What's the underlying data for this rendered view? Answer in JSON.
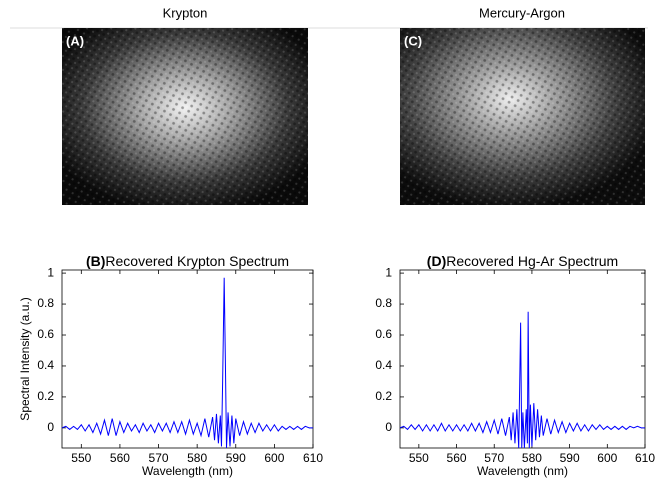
{
  "images": [
    {
      "title": "Krypton",
      "label": "(A)"
    },
    {
      "title": "Mercury-Argon",
      "label": "(C)"
    }
  ],
  "chart_data": [
    {
      "type": "line",
      "panel_label": "(B)",
      "title": "Recovered Krypton Spectrum",
      "x_label": "Wavelength (nm)",
      "y_label": "Spectral Intensity (a.u.)",
      "color": "#0000ff",
      "xlim": [
        545,
        610
      ],
      "xticks": [
        550,
        560,
        570,
        580,
        590,
        600,
        610
      ],
      "ylim": [
        -0.13,
        1.02
      ],
      "yticks": [
        0,
        0.2,
        0.4,
        0.6,
        0.8,
        1
      ],
      "x": [
        545,
        546,
        547,
        548,
        549,
        550,
        551,
        552,
        553,
        554,
        555,
        556,
        557,
        558,
        559,
        560,
        561,
        562,
        563,
        564,
        565,
        566,
        567,
        568,
        569,
        570,
        571,
        572,
        573,
        574,
        575,
        576,
        577,
        578,
        579,
        580,
        581,
        582,
        583,
        584,
        584.5,
        585,
        585.5,
        586,
        586.3,
        586.6,
        587,
        587.3,
        587.6,
        588,
        588.5,
        589,
        589.5,
        590,
        591,
        592,
        593,
        594,
        595,
        596,
        597,
        598,
        599,
        600,
        601,
        602,
        603,
        604,
        605,
        606,
        607,
        608,
        609,
        610
      ],
      "values": [
        0,
        0.01,
        -0.01,
        0.01,
        -0.01,
        0.02,
        -0.02,
        0.02,
        -0.03,
        0.03,
        -0.04,
        0.05,
        -0.05,
        0.06,
        -0.05,
        0.04,
        -0.03,
        0.03,
        -0.02,
        0.02,
        -0.03,
        0.03,
        -0.02,
        0.02,
        -0.03,
        0.03,
        -0.02,
        0.03,
        -0.03,
        0.04,
        -0.03,
        0.04,
        -0.04,
        0.05,
        -0.04,
        0.03,
        -0.05,
        0.06,
        -0.06,
        0.07,
        -0.08,
        0.09,
        -0.1,
        0.08,
        -0.12,
        0.3,
        0.97,
        0.45,
        -0.13,
        0.1,
        -0.12,
        0.08,
        -0.1,
        0.06,
        -0.05,
        0.04,
        -0.04,
        0.03,
        -0.03,
        0.03,
        -0.02,
        0.02,
        -0.02,
        0.02,
        -0.02,
        0.01,
        -0.01,
        0.01,
        -0.01,
        0.01,
        -0.01,
        0.01,
        0,
        0
      ]
    },
    {
      "type": "line",
      "panel_label": "(D)",
      "title": "Recovered Hg-Ar Spectrum",
      "x_label": "Wavelength (nm)",
      "color": "#0000ff",
      "xlim": [
        545,
        610
      ],
      "xticks": [
        550,
        560,
        570,
        580,
        590,
        600,
        610
      ],
      "ylim": [
        -0.13,
        1.02
      ],
      "yticks": [
        0,
        0.2,
        0.4,
        0.6,
        0.8,
        1
      ],
      "x": [
        545,
        546,
        547,
        548,
        549,
        550,
        551,
        552,
        553,
        554,
        555,
        556,
        557,
        558,
        559,
        560,
        561,
        562,
        563,
        564,
        565,
        566,
        567,
        568,
        569,
        570,
        571,
        572,
        573,
        574,
        574.5,
        575,
        575.5,
        576,
        576.5,
        577,
        577.3,
        577.6,
        578,
        578.5,
        578.8,
        579,
        579.3,
        579.6,
        580,
        580.5,
        581,
        581.5,
        582,
        582.5,
        583,
        584,
        585,
        586,
        587,
        588,
        589,
        590,
        591,
        592,
        593,
        594,
        595,
        596,
        597,
        598,
        599,
        600,
        601,
        602,
        603,
        604,
        605,
        606,
        607,
        608,
        609,
        610
      ],
      "values": [
        0,
        0.01,
        -0.01,
        0.02,
        -0.01,
        0.02,
        -0.02,
        0.02,
        -0.02,
        0.02,
        -0.02,
        0.03,
        -0.02,
        0.02,
        -0.02,
        0.02,
        -0.02,
        0.02,
        -0.02,
        0.03,
        -0.02,
        0.03,
        -0.03,
        0.04,
        -0.03,
        0.05,
        -0.04,
        0.06,
        -0.05,
        0.07,
        -0.08,
        0.1,
        -0.1,
        0.12,
        -0.13,
        0.68,
        -0.13,
        0.1,
        -0.13,
        0.12,
        -0.1,
        0.75,
        -0.13,
        0.15,
        -0.12,
        0.16,
        -0.08,
        0.12,
        -0.06,
        0.08,
        -0.05,
        0.06,
        -0.04,
        0.05,
        -0.03,
        0.04,
        -0.03,
        0.03,
        -0.02,
        0.03,
        -0.02,
        0.02,
        -0.02,
        0.02,
        -0.01,
        0.02,
        -0.01,
        0.01,
        -0.01,
        0.01,
        -0.01,
        0.01,
        -0.01,
        0.01,
        0,
        0.01,
        0,
        0
      ]
    }
  ]
}
